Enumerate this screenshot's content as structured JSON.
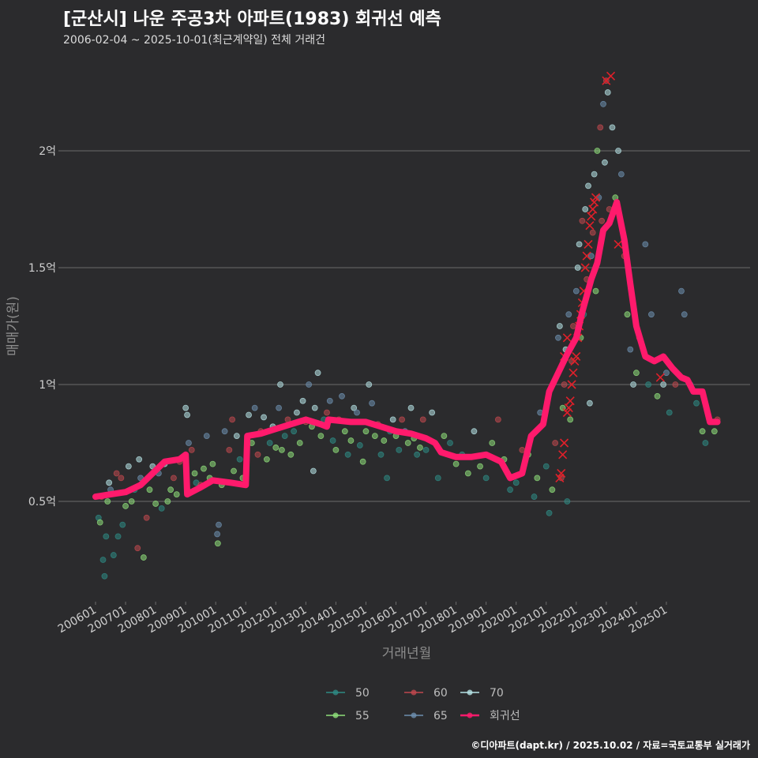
{
  "title": "[군산시] 나운 주공3차 아파트(1983) 회귀선 예측",
  "subtitle": "2006-02-04 ~ 2025-10-01(최근계약일) 전체 거래건",
  "caption": "©디아파트(dapt.kr) / 2025.10.02 / 자료=국토교통부 실거래가",
  "colors": {
    "background": "#2b2b2d",
    "grid": "#6b6b6b",
    "regression": "#ff1a6c",
    "high_marker": "#e0202a",
    "s50": "#2e8b84",
    "s55": "#8fe07a",
    "s60": "#c0484e",
    "s65": "#6d8fae",
    "s70": "#b6e3e6"
  },
  "chart_data": {
    "type": "scatter",
    "xlabel": "거래년월",
    "ylabel": "매매가(원)",
    "x_range": [
      "2006-01",
      "2025-12"
    ],
    "ylim": [
      0.1,
      2.45
    ],
    "y_unit": "억",
    "y_ticks": [
      {
        "value": 0.5,
        "label": "0.5억"
      },
      {
        "value": 1.0,
        "label": "1억"
      },
      {
        "value": 1.5,
        "label": "1.5억"
      },
      {
        "value": 2.0,
        "label": "2억"
      }
    ],
    "x_ticks": [
      "200601",
      "200701",
      "200801",
      "200901",
      "201001",
      "201101",
      "201201",
      "201301",
      "201401",
      "201501",
      "201601",
      "201701",
      "201801",
      "201901",
      "202001",
      "202101",
      "202201",
      "202301",
      "202401",
      "202501"
    ],
    "grid": "horizontal",
    "legend_position": "bottom",
    "legend": [
      {
        "label": "50",
        "color_key": "s50"
      },
      {
        "label": "55",
        "color_key": "s55"
      },
      {
        "label": "60",
        "color_key": "s60"
      },
      {
        "label": "65",
        "color_key": "s65"
      },
      {
        "label": "70",
        "color_key": "s70"
      },
      {
        "label": "회귀선",
        "color_key": "regression"
      }
    ],
    "regression_line": [
      [
        2006.0,
        0.52
      ],
      [
        2006.5,
        0.53
      ],
      [
        2007.0,
        0.54
      ],
      [
        2007.5,
        0.57
      ],
      [
        2007.9,
        0.62
      ],
      [
        2008.3,
        0.67
      ],
      [
        2008.8,
        0.68
      ],
      [
        2009.0,
        0.7
      ],
      [
        2009.05,
        0.53
      ],
      [
        2009.5,
        0.56
      ],
      [
        2009.9,
        0.59
      ],
      [
        2010.5,
        0.58
      ],
      [
        2011.0,
        0.57
      ],
      [
        2011.05,
        0.78
      ],
      [
        2011.5,
        0.79
      ],
      [
        2012.0,
        0.81
      ],
      [
        2012.5,
        0.83
      ],
      [
        2013.0,
        0.85
      ],
      [
        2013.5,
        0.83
      ],
      [
        2013.7,
        0.82
      ],
      [
        2013.75,
        0.85
      ],
      [
        2014.5,
        0.84
      ],
      [
        2015.0,
        0.84
      ],
      [
        2015.5,
        0.82
      ],
      [
        2016.0,
        0.8
      ],
      [
        2016.5,
        0.79
      ],
      [
        2017.0,
        0.77
      ],
      [
        2017.3,
        0.75
      ],
      [
        2017.5,
        0.71
      ],
      [
        2018.0,
        0.69
      ],
      [
        2018.5,
        0.69
      ],
      [
        2019.0,
        0.7
      ],
      [
        2019.5,
        0.67
      ],
      [
        2019.8,
        0.6
      ],
      [
        2020.2,
        0.62
      ],
      [
        2020.5,
        0.78
      ],
      [
        2020.9,
        0.83
      ],
      [
        2021.1,
        0.97
      ],
      [
        2021.4,
        1.05
      ],
      [
        2021.7,
        1.13
      ],
      [
        2022.0,
        1.2
      ],
      [
        2022.2,
        1.31
      ],
      [
        2022.5,
        1.45
      ],
      [
        2022.7,
        1.52
      ],
      [
        2022.9,
        1.66
      ],
      [
        2023.1,
        1.69
      ],
      [
        2023.35,
        1.78
      ],
      [
        2023.6,
        1.62
      ],
      [
        2023.8,
        1.43
      ],
      [
        2024.0,
        1.25
      ],
      [
        2024.3,
        1.12
      ],
      [
        2024.6,
        1.1
      ],
      [
        2024.9,
        1.12
      ],
      [
        2025.2,
        1.07
      ],
      [
        2025.5,
        1.03
      ],
      [
        2025.7,
        1.02
      ],
      [
        2025.9,
        0.97
      ],
      [
        2026.2,
        0.97
      ],
      [
        2026.45,
        0.84
      ],
      [
        2026.7,
        0.84
      ]
    ],
    "scatter_points": [
      [
        2006.1,
        0.43,
        "s50"
      ],
      [
        2006.15,
        0.41,
        "s55"
      ],
      [
        2006.2,
        0.52,
        "s60"
      ],
      [
        2006.25,
        0.25,
        "s50"
      ],
      [
        2006.3,
        0.18,
        "s50"
      ],
      [
        2006.35,
        0.35,
        "s50"
      ],
      [
        2006.4,
        0.5,
        "s55"
      ],
      [
        2006.45,
        0.58,
        "s70"
      ],
      [
        2006.5,
        0.55,
        "s65"
      ],
      [
        2006.6,
        0.27,
        "s50"
      ],
      [
        2006.7,
        0.62,
        "s60"
      ],
      [
        2006.75,
        0.35,
        "s50"
      ],
      [
        2006.85,
        0.6,
        "s60"
      ],
      [
        2006.9,
        0.4,
        "s50"
      ],
      [
        2007.0,
        0.48,
        "s55"
      ],
      [
        2007.1,
        0.65,
        "s70"
      ],
      [
        2007.2,
        0.5,
        "s55"
      ],
      [
        2007.3,
        0.55,
        "s50"
      ],
      [
        2007.4,
        0.3,
        "s60"
      ],
      [
        2007.45,
        0.68,
        "s70"
      ],
      [
        2007.5,
        0.6,
        "s65"
      ],
      [
        2007.6,
        0.26,
        "s55"
      ],
      [
        2007.7,
        0.43,
        "s60"
      ],
      [
        2007.8,
        0.55,
        "s55"
      ],
      [
        2007.9,
        0.65,
        "s70"
      ],
      [
        2008.0,
        0.49,
        "s55"
      ],
      [
        2008.1,
        0.62,
        "s65"
      ],
      [
        2008.2,
        0.47,
        "s50"
      ],
      [
        2008.3,
        0.66,
        "s70"
      ],
      [
        2008.4,
        0.5,
        "s55"
      ],
      [
        2008.5,
        0.55,
        "s55"
      ],
      [
        2008.6,
        0.6,
        "s60"
      ],
      [
        2008.7,
        0.53,
        "s55"
      ],
      [
        2008.8,
        0.67,
        "s60"
      ],
      [
        2009.0,
        0.9,
        "s70"
      ],
      [
        2009.05,
        0.87,
        "s70"
      ],
      [
        2009.1,
        0.75,
        "s65"
      ],
      [
        2009.2,
        0.72,
        "s60"
      ],
      [
        2009.3,
        0.62,
        "s55"
      ],
      [
        2009.35,
        0.58,
        "s50"
      ],
      [
        2009.5,
        0.57,
        "s60"
      ],
      [
        2009.6,
        0.64,
        "s55"
      ],
      [
        2009.7,
        0.78,
        "s65"
      ],
      [
        2009.8,
        0.6,
        "s55"
      ],
      [
        2009.9,
        0.66,
        "s55"
      ],
      [
        2010.05,
        0.36,
        "s65"
      ],
      [
        2010.07,
        0.32,
        "s55"
      ],
      [
        2010.1,
        0.4,
        "s65"
      ],
      [
        2010.2,
        0.57,
        "s55"
      ],
      [
        2010.3,
        0.8,
        "s65"
      ],
      [
        2010.45,
        0.72,
        "s60"
      ],
      [
        2010.55,
        0.85,
        "s60"
      ],
      [
        2010.6,
        0.63,
        "s55"
      ],
      [
        2010.7,
        0.78,
        "s70"
      ],
      [
        2010.8,
        0.68,
        "s50"
      ],
      [
        2010.9,
        0.6,
        "s55"
      ],
      [
        2011.1,
        0.87,
        "s70"
      ],
      [
        2011.2,
        0.75,
        "s55"
      ],
      [
        2011.3,
        0.9,
        "s65"
      ],
      [
        2011.4,
        0.7,
        "s60"
      ],
      [
        2011.5,
        0.8,
        "s60"
      ],
      [
        2011.6,
        0.86,
        "s70"
      ],
      [
        2011.7,
        0.68,
        "s55"
      ],
      [
        2011.8,
        0.75,
        "s50"
      ],
      [
        2011.9,
        0.82,
        "s70"
      ],
      [
        2012.0,
        0.73,
        "s55"
      ],
      [
        2012.1,
        0.9,
        "s65"
      ],
      [
        2012.15,
        1.0,
        "s70"
      ],
      [
        2012.2,
        0.72,
        "s55"
      ],
      [
        2012.3,
        0.78,
        "s50"
      ],
      [
        2012.4,
        0.85,
        "s60"
      ],
      [
        2012.5,
        0.7,
        "s55"
      ],
      [
        2012.6,
        0.8,
        "s50"
      ],
      [
        2012.7,
        0.88,
        "s70"
      ],
      [
        2012.8,
        0.75,
        "s55"
      ],
      [
        2012.9,
        0.93,
        "s70"
      ],
      [
        2013.0,
        0.84,
        "s60"
      ],
      [
        2013.1,
        1.0,
        "s65"
      ],
      [
        2013.2,
        0.82,
        "s55"
      ],
      [
        2013.25,
        0.63,
        "s70"
      ],
      [
        2013.3,
        0.9,
        "s70"
      ],
      [
        2013.4,
        1.05,
        "s70"
      ],
      [
        2013.5,
        0.78,
        "s55"
      ],
      [
        2013.6,
        0.85,
        "s50"
      ],
      [
        2013.7,
        0.88,
        "s60"
      ],
      [
        2013.8,
        0.93,
        "s65"
      ],
      [
        2013.9,
        0.76,
        "s50"
      ],
      [
        2014.0,
        0.72,
        "s55"
      ],
      [
        2014.1,
        0.85,
        "s60"
      ],
      [
        2014.2,
        0.95,
        "s65"
      ],
      [
        2014.3,
        0.8,
        "s55"
      ],
      [
        2014.4,
        0.7,
        "s50"
      ],
      [
        2014.5,
        0.76,
        "s55"
      ],
      [
        2014.6,
        0.9,
        "s70"
      ],
      [
        2014.7,
        0.88,
        "s65"
      ],
      [
        2014.8,
        0.74,
        "s50"
      ],
      [
        2014.9,
        0.67,
        "s55"
      ],
      [
        2015.0,
        0.8,
        "s55"
      ],
      [
        2015.1,
        1.0,
        "s70"
      ],
      [
        2015.2,
        0.92,
        "s65"
      ],
      [
        2015.3,
        0.78,
        "s55"
      ],
      [
        2015.4,
        0.83,
        "s60"
      ],
      [
        2015.5,
        0.7,
        "s50"
      ],
      [
        2015.6,
        0.76,
        "s55"
      ],
      [
        2015.7,
        0.6,
        "s50"
      ],
      [
        2015.8,
        0.8,
        "s50"
      ],
      [
        2015.9,
        0.85,
        "s70"
      ],
      [
        2016.0,
        0.78,
        "s55"
      ],
      [
        2016.1,
        0.72,
        "s50"
      ],
      [
        2016.2,
        0.85,
        "s60"
      ],
      [
        2016.3,
        0.8,
        "s65"
      ],
      [
        2016.4,
        0.75,
        "s55"
      ],
      [
        2016.5,
        0.9,
        "s70"
      ],
      [
        2016.6,
        0.77,
        "s55"
      ],
      [
        2016.7,
        0.7,
        "s50"
      ],
      [
        2016.8,
        0.73,
        "s55"
      ],
      [
        2016.9,
        0.85,
        "s60"
      ],
      [
        2017.0,
        0.72,
        "s50"
      ],
      [
        2017.2,
        0.88,
        "s70"
      ],
      [
        2017.4,
        0.6,
        "s50"
      ],
      [
        2017.6,
        0.78,
        "s55"
      ],
      [
        2017.8,
        0.75,
        "s50"
      ],
      [
        2018.0,
        0.66,
        "s55"
      ],
      [
        2018.2,
        0.7,
        "s50"
      ],
      [
        2018.4,
        0.62,
        "s55"
      ],
      [
        2018.6,
        0.8,
        "s70"
      ],
      [
        2018.8,
        0.65,
        "s55"
      ],
      [
        2019.0,
        0.6,
        "s50"
      ],
      [
        2019.2,
        0.75,
        "s55"
      ],
      [
        2019.4,
        0.85,
        "s60"
      ],
      [
        2019.6,
        0.68,
        "s55"
      ],
      [
        2019.8,
        0.55,
        "s50"
      ],
      [
        2020.0,
        0.58,
        "s50"
      ],
      [
        2020.2,
        0.72,
        "s60"
      ],
      [
        2020.4,
        0.7,
        "s55"
      ],
      [
        2020.6,
        0.52,
        "s50"
      ],
      [
        2020.7,
        0.6,
        "s55"
      ],
      [
        2020.8,
        0.88,
        "s65"
      ],
      [
        2021.0,
        0.65,
        "s50"
      ],
      [
        2021.1,
        0.45,
        "s50"
      ],
      [
        2021.2,
        0.55,
        "s55"
      ],
      [
        2021.3,
        0.75,
        "s60"
      ],
      [
        2021.4,
        1.2,
        "s65"
      ],
      [
        2021.45,
        1.25,
        "s70"
      ],
      [
        2021.5,
        0.6,
        "s60"
      ],
      [
        2021.55,
        0.9,
        "s55"
      ],
      [
        2021.6,
        1.0,
        "s60"
      ],
      [
        2021.65,
        1.15,
        "s70"
      ],
      [
        2021.7,
        0.5,
        "s50"
      ],
      [
        2021.75,
        1.3,
        "s65"
      ],
      [
        2021.8,
        0.85,
        "s55"
      ],
      [
        2021.85,
        1.1,
        "s60"
      ],
      [
        2021.9,
        1.25,
        "s60"
      ],
      [
        2022.0,
        1.4,
        "s65"
      ],
      [
        2022.05,
        1.5,
        "s70"
      ],
      [
        2022.1,
        1.6,
        "s70"
      ],
      [
        2022.15,
        1.2,
        "s55"
      ],
      [
        2022.2,
        1.7,
        "s60"
      ],
      [
        2022.25,
        1.3,
        "s50"
      ],
      [
        2022.3,
        1.75,
        "s70"
      ],
      [
        2022.35,
        1.45,
        "s60"
      ],
      [
        2022.4,
        1.85,
        "s70"
      ],
      [
        2022.45,
        0.92,
        "s70"
      ],
      [
        2022.5,
        1.55,
        "s65"
      ],
      [
        2022.55,
        1.65,
        "s60"
      ],
      [
        2022.6,
        1.9,
        "s70"
      ],
      [
        2022.65,
        1.4,
        "s55"
      ],
      [
        2022.7,
        2.0,
        "s55"
      ],
      [
        2022.75,
        1.8,
        "s65"
      ],
      [
        2022.8,
        2.1,
        "s60"
      ],
      [
        2022.85,
        1.7,
        "s60"
      ],
      [
        2022.9,
        2.2,
        "s65"
      ],
      [
        2022.95,
        1.95,
        "s70"
      ],
      [
        2023.0,
        2.3,
        "s60"
      ],
      [
        2023.05,
        2.25,
        "s70"
      ],
      [
        2023.1,
        1.75,
        "s60"
      ],
      [
        2023.2,
        2.1,
        "s70"
      ],
      [
        2023.3,
        1.8,
        "s55"
      ],
      [
        2023.4,
        2.0,
        "s70"
      ],
      [
        2023.5,
        1.9,
        "s65"
      ],
      [
        2023.6,
        1.55,
        "s60"
      ],
      [
        2023.7,
        1.3,
        "s55"
      ],
      [
        2023.8,
        1.15,
        "s65"
      ],
      [
        2023.9,
        1.0,
        "s70"
      ],
      [
        2024.0,
        1.05,
        "s55"
      ],
      [
        2024.1,
        1.2,
        "s60"
      ],
      [
        2024.3,
        1.6,
        "s65"
      ],
      [
        2024.4,
        1.0,
        "s50"
      ],
      [
        2024.5,
        1.3,
        "s65"
      ],
      [
        2024.7,
        0.95,
        "s55"
      ],
      [
        2024.9,
        1.0,
        "s70"
      ],
      [
        2025.0,
        1.05,
        "s65"
      ],
      [
        2025.1,
        0.88,
        "s50"
      ],
      [
        2025.3,
        1.0,
        "s60"
      ],
      [
        2025.5,
        1.4,
        "s65"
      ],
      [
        2025.6,
        1.3,
        "s65"
      ],
      [
        2025.8,
        1.0,
        "s50"
      ],
      [
        2026.0,
        0.92,
        "s50"
      ],
      [
        2026.2,
        0.8,
        "s55"
      ],
      [
        2026.3,
        0.75,
        "s50"
      ],
      [
        2026.6,
        0.8,
        "s55"
      ],
      [
        2026.7,
        0.85,
        "s60"
      ]
    ],
    "high_markers": [
      [
        2021.45,
        0.6
      ],
      [
        2021.5,
        0.62
      ],
      [
        2021.55,
        0.7
      ],
      [
        2021.6,
        0.75
      ],
      [
        2021.7,
        0.88
      ],
      [
        2021.75,
        0.9
      ],
      [
        2021.8,
        0.93
      ],
      [
        2021.85,
        1.0
      ],
      [
        2021.9,
        1.05
      ],
      [
        2021.95,
        1.1
      ],
      [
        2022.0,
        1.12
      ],
      [
        2022.05,
        1.2
      ],
      [
        2022.1,
        1.25
      ],
      [
        2022.15,
        1.3
      ],
      [
        2022.2,
        1.35
      ],
      [
        2022.25,
        1.4
      ],
      [
        2022.3,
        1.5
      ],
      [
        2022.35,
        1.55
      ],
      [
        2022.4,
        1.6
      ],
      [
        2022.45,
        1.68
      ],
      [
        2022.5,
        1.72
      ],
      [
        2022.55,
        1.75
      ],
      [
        2022.6,
        1.78
      ],
      [
        2022.65,
        1.8
      ],
      [
        2021.6,
        1.12
      ],
      [
        2021.7,
        1.2
      ],
      [
        2023.0,
        2.3
      ],
      [
        2023.15,
        2.32
      ],
      [
        2023.4,
        1.6
      ],
      [
        2024.8,
        1.03
      ]
    ]
  }
}
